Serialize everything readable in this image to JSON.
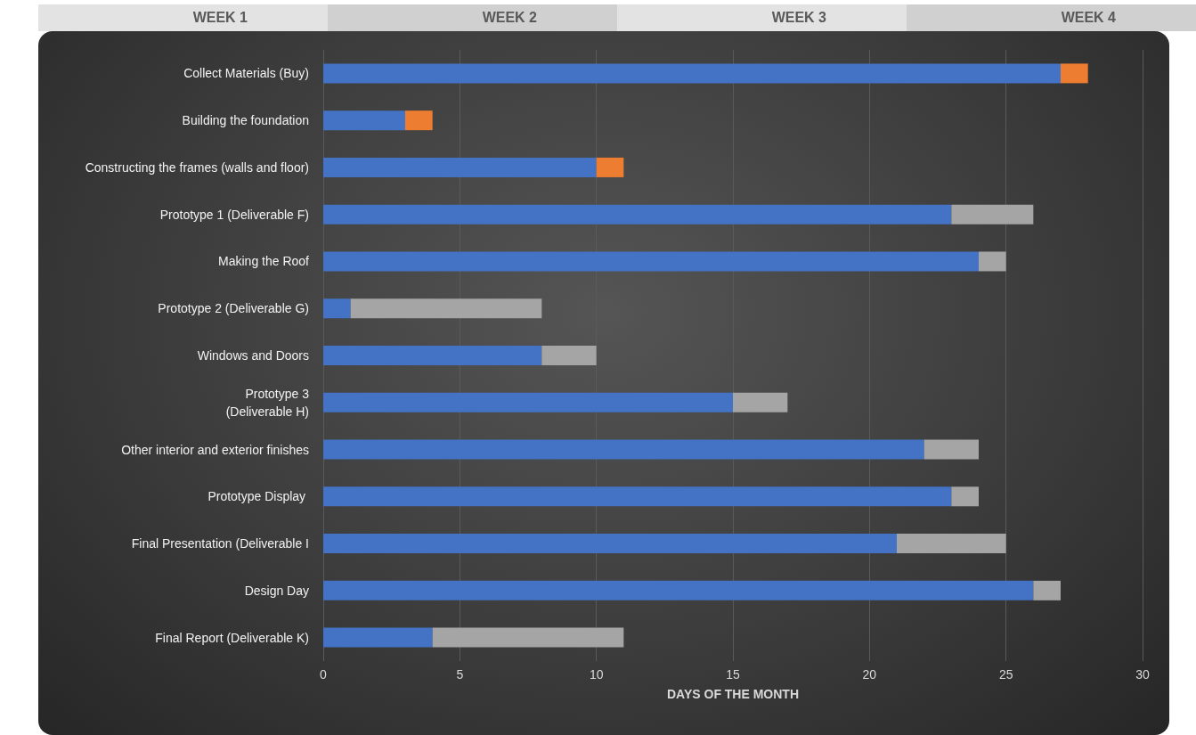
{
  "chart_data": {
    "type": "bar",
    "orientation": "horizontal",
    "stacked": true,
    "xlabel": "DAYS OF THE MONTH",
    "categories": [
      "Collect Materials (Buy)",
      "Building the foundation",
      "Constructing the frames (walls and floor)",
      "Prototype 1 (Deliverable F)",
      "Making the Roof",
      "Prototype 2 (Deliverable G)",
      "Windows and Doors",
      "Prototype 3\n(Deliverable H)",
      "Other interior and exterior finishes",
      "Prototype Display ",
      "Final Presentation (Deliverable I",
      "Design Day",
      "Final Report (Deliverable K)"
    ],
    "series": [
      {
        "color": "#4472c4",
        "values": [
          27,
          3,
          10,
          23,
          24,
          1,
          8,
          15,
          22,
          23,
          21,
          26,
          4
        ]
      },
      {
        "colors": [
          "#ed7d31",
          "#ed7d31",
          "#ed7d31",
          "#a5a5a5",
          "#a5a5a5",
          "#a5a5a5",
          "#a5a5a5",
          "#a5a5a5",
          "#a5a5a5",
          "#a5a5a5",
          "#a5a5a5",
          "#a5a5a5",
          "#a5a5a5"
        ],
        "values": [
          1,
          1,
          1,
          3,
          1,
          7,
          2,
          2,
          2,
          1,
          4,
          1,
          7
        ]
      }
    ],
    "xlim": [
      0,
      30
    ],
    "xticks": [
      0,
      5,
      10,
      15,
      20,
      25,
      30
    ],
    "grid": "x",
    "annotations": [
      "WEEK 1",
      "WEEK 2",
      "WEEK 3",
      "WEEK 4"
    ]
  }
}
